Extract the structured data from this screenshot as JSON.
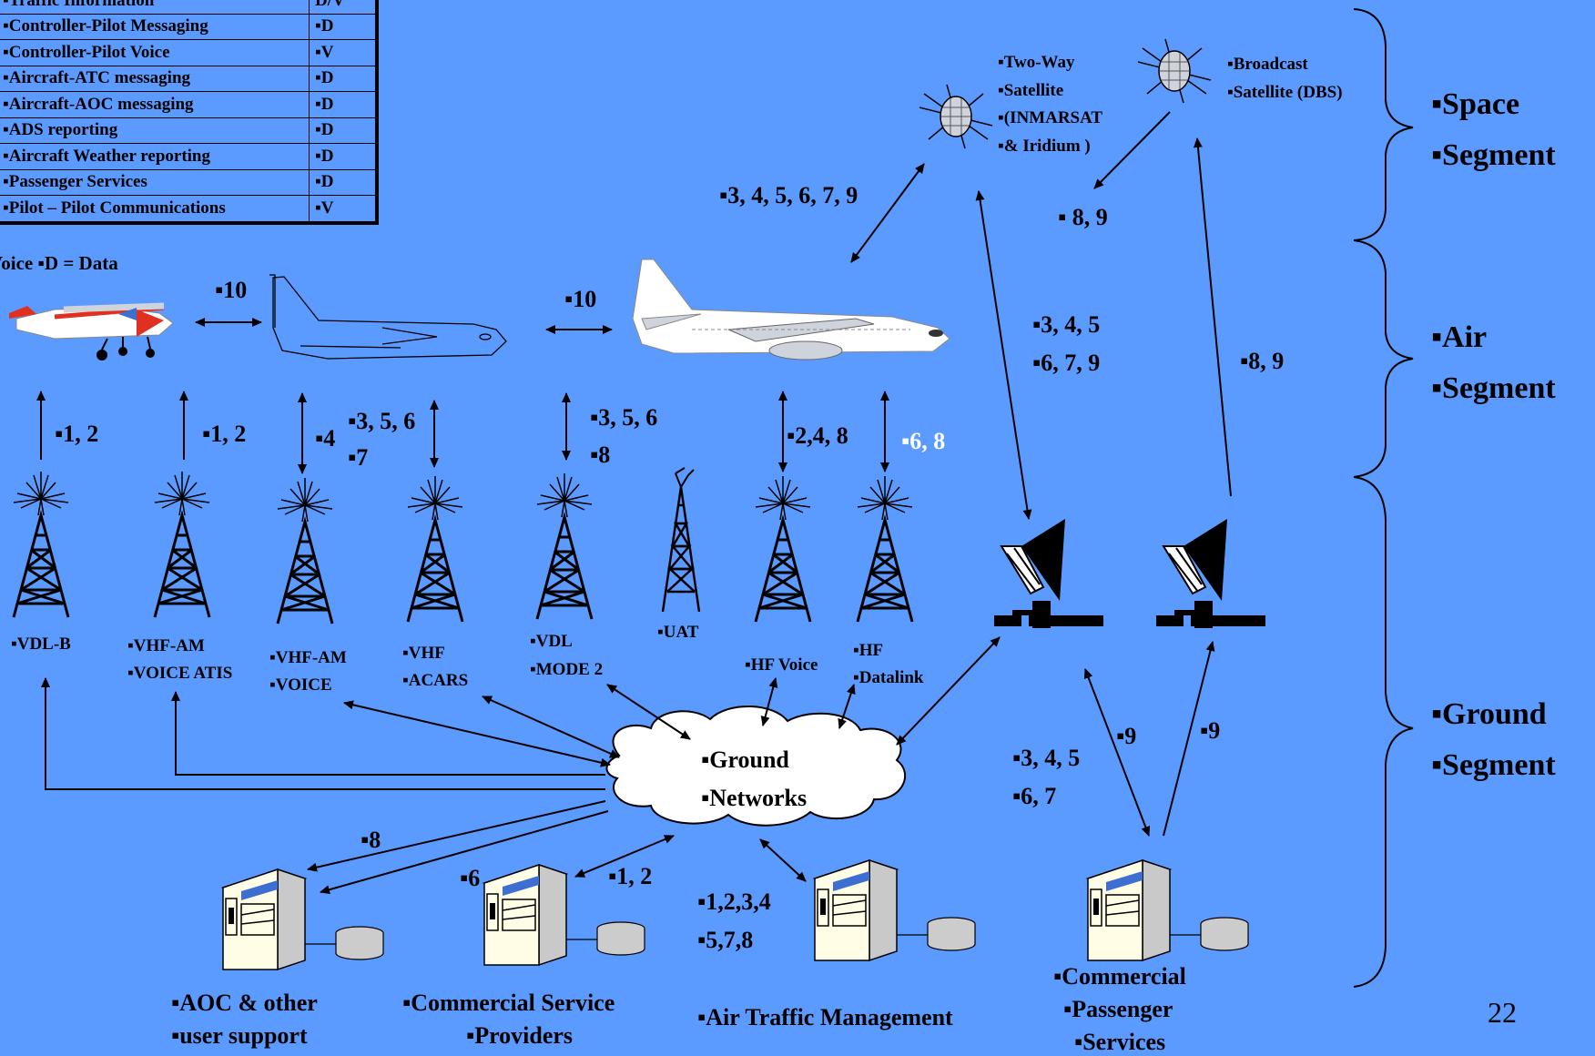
{
  "services_table": {
    "rows": [
      {
        "service": "▪Traffic Information",
        "type": "D/V"
      },
      {
        "service": "▪Controller-Pilot Messaging",
        "type": "▪D"
      },
      {
        "service": "▪Controller-Pilot Voice",
        "type": "▪V"
      },
      {
        "service": "▪Aircraft-ATC messaging",
        "type": "▪D"
      },
      {
        "service": "▪Aircraft-AOC messaging",
        "type": "▪D"
      },
      {
        "service": "▪ADS reporting",
        "type": "▪D"
      },
      {
        "service": "▪Aircraft Weather reporting",
        "type": "▪D"
      },
      {
        "service": "▪Passenger Services",
        "type": "▪D"
      },
      {
        "service": "▪Pilot – Pilot Communications",
        "type": "▪V"
      }
    ],
    "legend": "Voice   ▪D = Data"
  },
  "segments": {
    "space": [
      "▪Space",
      "▪Segment"
    ],
    "air": [
      "▪Air",
      "▪Segment"
    ],
    "ground": [
      "▪Ground",
      "▪Segment"
    ]
  },
  "satellites": {
    "two_way": [
      "▪Two-Way",
      "▪Satellite",
      "▪(INMARSAT",
      "▪& Iridium )"
    ],
    "broadcast": [
      "▪Broadcast",
      "▪Satellite (DBS)"
    ]
  },
  "ground_stations": {
    "vdl_b": [
      "▪VDL-B"
    ],
    "vhf_am_atis": [
      "▪VHF-AM",
      "▪VOICE ATIS"
    ],
    "vhf_am_voice": [
      "▪VHF-AM",
      "▪VOICE"
    ],
    "vhf_acars": [
      "▪VHF",
      "▪ACARS"
    ],
    "vdl_mode2": [
      "▪VDL",
      "▪MODE 2"
    ],
    "uat": [
      "▪UAT"
    ],
    "hf_voice": [
      "▪HF Voice"
    ],
    "hf_datalink": [
      "▪HF",
      "▪Datalink"
    ]
  },
  "cloud": [
    "▪Ground",
    "▪Networks"
  ],
  "servers": {
    "aoc": [
      "▪AOC & other",
      "▪user support"
    ],
    "csp": [
      "▪Commercial Service",
      "▪Providers"
    ],
    "atm": [
      "▪Air Traffic Management"
    ],
    "cps": [
      "▪Commercial",
      "▪Passenger",
      "▪Services"
    ]
  },
  "link_labels": {
    "l1": "▪10",
    "l2": "▪10",
    "l3": "▪1, 2",
    "l4": "▪1, 2",
    "l5": "▪4",
    "l6": "▪3, 5, 6",
    "l7": "▪7",
    "l8": "▪3, 5, 6",
    "l9": "▪8",
    "l10": "▪2,4, 8",
    "l11": "▪6, 8",
    "l12": "▪3, 4, 5, 6, 7, 9",
    "l13": "▪ 8, 9",
    "l14": "▪3, 4, 5",
    "l15": "▪6, 7, 9",
    "l16": "▪8, 9",
    "l17": "▪9",
    "l18": "▪9",
    "l19": "▪3, 4, 5",
    "l20": "▪6, 7",
    "l21": "▪8",
    "l22": "▪6",
    "l23": "▪1, 2",
    "l24": "▪1,2,3,4",
    "l25": "▪5,7,8"
  },
  "page_number": "22",
  "colors": {
    "background": "#5b9bff",
    "white_label": "#ffffff",
    "server_body": "#fffde6",
    "server_panel": "#3c6fd1"
  }
}
